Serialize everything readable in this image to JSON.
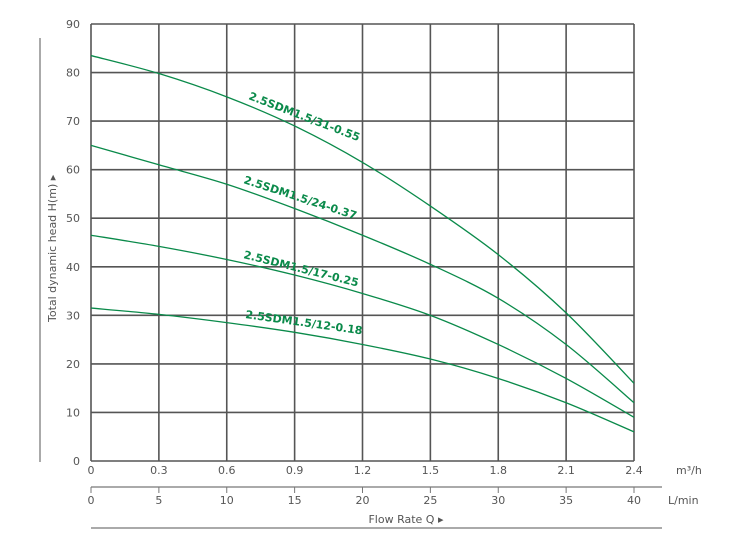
{
  "chart_data": {
    "type": "line",
    "title": "",
    "xlabel": "Flow Rate Q",
    "ylabel": "Total dynamic head H(m)",
    "x_unit_primary": "m³/h",
    "x_unit_secondary": "L/min",
    "xlim": [
      0,
      2.4
    ],
    "ylim": [
      0,
      90
    ],
    "grid": true,
    "legend_position": "inline labels on curves",
    "x_ticks_m3h": [
      "0",
      "0.3",
      "0.6",
      "0.9",
      "1.2",
      "1.5",
      "1.8",
      "2.1",
      "2.4"
    ],
    "x_ticks_lmin": [
      "0",
      "5",
      "10",
      "15",
      "20",
      "25",
      "30",
      "35",
      "40"
    ],
    "y_ticks": [
      "0",
      "10",
      "20",
      "30",
      "40",
      "50",
      "60",
      "70",
      "80",
      "90"
    ],
    "x": [
      0,
      0.3,
      0.6,
      0.9,
      1.2,
      1.5,
      1.8,
      2.1,
      2.4
    ],
    "series": [
      {
        "name": "2.5SDM1.5/31-0.55",
        "values": [
          83.5,
          79.8,
          75.0,
          69.0,
          61.5,
          52.5,
          42.5,
          30.5,
          16.0
        ]
      },
      {
        "name": "2.5SDM1.5/24-0.37",
        "values": [
          65.0,
          61.0,
          57.0,
          52.0,
          46.5,
          40.5,
          33.5,
          24.0,
          12.0
        ]
      },
      {
        "name": "2.5SDM1.5/17-0.25",
        "values": [
          46.5,
          44.2,
          41.5,
          38.3,
          34.5,
          30.0,
          24.0,
          17.0,
          9.0
        ]
      },
      {
        "name": "2.5SDM1.5/12-0.18",
        "values": [
          31.5,
          30.2,
          28.5,
          26.5,
          24.0,
          21.0,
          17.0,
          12.0,
          6.0
        ]
      }
    ],
    "colors": {
      "curve": "#0a8a4a",
      "grid": "#555555",
      "text": "#555555"
    }
  },
  "axis": {
    "y_title": "Total dynamic head H(m) ▸",
    "x_title": "Flow Rate Q ▸",
    "unit_m3h": "m³/h",
    "unit_lmin": "L/min"
  }
}
